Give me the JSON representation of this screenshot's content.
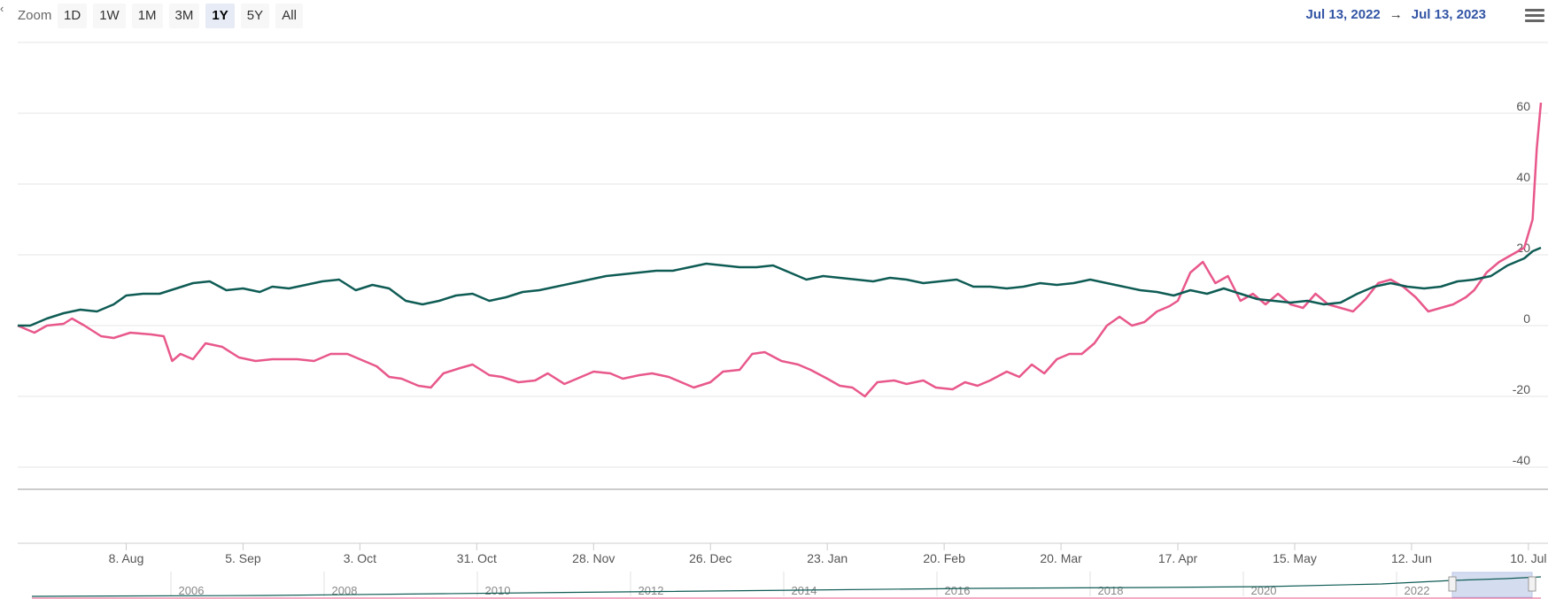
{
  "toolbar": {
    "collapse_glyph": "‹",
    "zoom_label": "Zoom",
    "zoom_buttons": [
      "1D",
      "1W",
      "1M",
      "3M",
      "1Y",
      "5Y",
      "All"
    ],
    "active_zoom": "1Y",
    "range_start": "Jul 13, 2022",
    "range_arrow": "→",
    "range_end": "Jul 13, 2023",
    "menu_icon": "hamburger-menu-icon"
  },
  "chart_data": {
    "type": "line",
    "ylim": [
      -45,
      62
    ],
    "yticks": [
      60,
      40,
      20,
      0,
      -20,
      -40
    ],
    "grid": true,
    "date_range": [
      "2022-07-13",
      "2023-07-13"
    ],
    "xticks": [
      {
        "label": "8. Aug",
        "date": "2022-08-08"
      },
      {
        "label": "5. Sep",
        "date": "2022-09-05"
      },
      {
        "label": "3. Oct",
        "date": "2022-10-03"
      },
      {
        "label": "31. Oct",
        "date": "2022-10-31"
      },
      {
        "label": "28. Nov",
        "date": "2022-11-28"
      },
      {
        "label": "26. Dec",
        "date": "2022-12-26"
      },
      {
        "label": "23. Jan",
        "date": "2023-01-23"
      },
      {
        "label": "20. Feb",
        "date": "2023-02-20"
      },
      {
        "label": "20. Mar",
        "date": "2023-03-20"
      },
      {
        "label": "17. Apr",
        "date": "2023-04-17"
      },
      {
        "label": "15. May",
        "date": "2023-05-15"
      },
      {
        "label": "12. Jun",
        "date": "2023-06-12"
      },
      {
        "label": "10. Jul",
        "date": "2023-07-10"
      }
    ],
    "series": [
      {
        "color": "#e8588b",
        "points": [
          [
            "2022-07-13",
            0
          ],
          [
            "2022-07-17",
            -2
          ],
          [
            "2022-07-20",
            0
          ],
          [
            "2022-07-24",
            0.5
          ],
          [
            "2022-07-26",
            2
          ],
          [
            "2022-07-29",
            0
          ],
          [
            "2022-08-02",
            -3
          ],
          [
            "2022-08-05",
            -3.5
          ],
          [
            "2022-08-09",
            -2
          ],
          [
            "2022-08-14",
            -2.5
          ],
          [
            "2022-08-17",
            -3
          ],
          [
            "2022-08-19",
            -10
          ],
          [
            "2022-08-21",
            -8
          ],
          [
            "2022-08-24",
            -9.5
          ],
          [
            "2022-08-27",
            -5
          ],
          [
            "2022-08-31",
            -6
          ],
          [
            "2022-09-04",
            -9
          ],
          [
            "2022-09-08",
            -10
          ],
          [
            "2022-09-12",
            -9.5
          ],
          [
            "2022-09-18",
            -9.5
          ],
          [
            "2022-09-22",
            -10
          ],
          [
            "2022-09-26",
            -8
          ],
          [
            "2022-09-30",
            -8
          ],
          [
            "2022-10-04",
            -10
          ],
          [
            "2022-10-07",
            -11.5
          ],
          [
            "2022-10-10",
            -14.5
          ],
          [
            "2022-10-13",
            -15
          ],
          [
            "2022-10-17",
            -17
          ],
          [
            "2022-10-20",
            -17.5
          ],
          [
            "2022-10-23",
            -13.5
          ],
          [
            "2022-10-27",
            -12
          ],
          [
            "2022-10-30",
            -11
          ],
          [
            "2022-11-03",
            -14
          ],
          [
            "2022-11-06",
            -14.5
          ],
          [
            "2022-11-10",
            -16
          ],
          [
            "2022-11-14",
            -15.5
          ],
          [
            "2022-11-17",
            -13.5
          ],
          [
            "2022-11-21",
            -16.5
          ],
          [
            "2022-11-24",
            -15
          ],
          [
            "2022-11-28",
            -13
          ],
          [
            "2022-12-02",
            -13.5
          ],
          [
            "2022-12-05",
            -15
          ],
          [
            "2022-12-09",
            -14
          ],
          [
            "2022-12-12",
            -13.5
          ],
          [
            "2022-12-16",
            -14.5
          ],
          [
            "2022-12-19",
            -16
          ],
          [
            "2022-12-22",
            -17.5
          ],
          [
            "2022-12-26",
            -16
          ],
          [
            "2022-12-29",
            -13
          ],
          [
            "2023-01-02",
            -12.5
          ],
          [
            "2023-01-05",
            -8
          ],
          [
            "2023-01-08",
            -7.5
          ],
          [
            "2023-01-12",
            -10
          ],
          [
            "2023-01-16",
            -11
          ],
          [
            "2023-01-19",
            -12.5
          ],
          [
            "2023-01-23",
            -15
          ],
          [
            "2023-01-26",
            -17
          ],
          [
            "2023-01-29",
            -17.5
          ],
          [
            "2023-02-01",
            -20
          ],
          [
            "2023-02-04",
            -16
          ],
          [
            "2023-02-08",
            -15.5
          ],
          [
            "2023-02-11",
            -16.5
          ],
          [
            "2023-02-15",
            -15.5
          ],
          [
            "2023-02-18",
            -17.5
          ],
          [
            "2023-02-22",
            -18
          ],
          [
            "2023-02-25",
            -16
          ],
          [
            "2023-02-28",
            -17
          ],
          [
            "2023-03-03",
            -15.5
          ],
          [
            "2023-03-07",
            -13
          ],
          [
            "2023-03-10",
            -14.5
          ],
          [
            "2023-03-13",
            -11
          ],
          [
            "2023-03-16",
            -13.5
          ],
          [
            "2023-03-19",
            -9.5
          ],
          [
            "2023-03-22",
            -8
          ],
          [
            "2023-03-25",
            -8
          ],
          [
            "2023-03-28",
            -5
          ],
          [
            "2023-03-31",
            0
          ],
          [
            "2023-04-03",
            2.5
          ],
          [
            "2023-04-06",
            0
          ],
          [
            "2023-04-09",
            1
          ],
          [
            "2023-04-12",
            4
          ],
          [
            "2023-04-15",
            5.5
          ],
          [
            "2023-04-17",
            7
          ],
          [
            "2023-04-20",
            15
          ],
          [
            "2023-04-23",
            18
          ],
          [
            "2023-04-26",
            12
          ],
          [
            "2023-04-29",
            14
          ],
          [
            "2023-05-02",
            7
          ],
          [
            "2023-05-05",
            9
          ],
          [
            "2023-05-08",
            6
          ],
          [
            "2023-05-11",
            9
          ],
          [
            "2023-05-14",
            6
          ],
          [
            "2023-05-17",
            5
          ],
          [
            "2023-05-20",
            9
          ],
          [
            "2023-05-23",
            6
          ],
          [
            "2023-05-26",
            5
          ],
          [
            "2023-05-29",
            4
          ],
          [
            "2023-06-01",
            7.5
          ],
          [
            "2023-06-04",
            12
          ],
          [
            "2023-06-07",
            13
          ],
          [
            "2023-06-10",
            11
          ],
          [
            "2023-06-13",
            8
          ],
          [
            "2023-06-16",
            4
          ],
          [
            "2023-06-19",
            5
          ],
          [
            "2023-06-22",
            6
          ],
          [
            "2023-06-25",
            8
          ],
          [
            "2023-06-27",
            10
          ],
          [
            "2023-06-30",
            15
          ],
          [
            "2023-07-03",
            18
          ],
          [
            "2023-07-06",
            20
          ],
          [
            "2023-07-09",
            22
          ],
          [
            "2023-07-11",
            30
          ],
          [
            "2023-07-12",
            50
          ],
          [
            "2023-07-13",
            63
          ]
        ]
      },
      {
        "color": "#0f5c55",
        "points": [
          [
            "2022-07-13",
            0
          ],
          [
            "2022-07-16",
            0
          ],
          [
            "2022-07-20",
            2
          ],
          [
            "2022-07-24",
            3.5
          ],
          [
            "2022-07-28",
            4.5
          ],
          [
            "2022-08-01",
            4
          ],
          [
            "2022-08-05",
            6
          ],
          [
            "2022-08-08",
            8.5
          ],
          [
            "2022-08-12",
            9
          ],
          [
            "2022-08-16",
            9
          ],
          [
            "2022-08-20",
            10.5
          ],
          [
            "2022-08-24",
            12
          ],
          [
            "2022-08-28",
            12.5
          ],
          [
            "2022-09-01",
            10
          ],
          [
            "2022-09-05",
            10.5
          ],
          [
            "2022-09-09",
            9.5
          ],
          [
            "2022-09-12",
            11
          ],
          [
            "2022-09-16",
            10.5
          ],
          [
            "2022-09-20",
            11.5
          ],
          [
            "2022-09-24",
            12.5
          ],
          [
            "2022-09-28",
            13
          ],
          [
            "2022-10-02",
            10
          ],
          [
            "2022-10-06",
            11.5
          ],
          [
            "2022-10-10",
            10.5
          ],
          [
            "2022-10-14",
            7
          ],
          [
            "2022-10-18",
            6
          ],
          [
            "2022-10-22",
            7
          ],
          [
            "2022-10-26",
            8.5
          ],
          [
            "2022-10-30",
            9
          ],
          [
            "2022-11-03",
            7
          ],
          [
            "2022-11-07",
            8
          ],
          [
            "2022-11-11",
            9.5
          ],
          [
            "2022-11-15",
            10
          ],
          [
            "2022-11-19",
            11
          ],
          [
            "2022-11-23",
            12
          ],
          [
            "2022-11-27",
            13
          ],
          [
            "2022-12-01",
            14
          ],
          [
            "2022-12-05",
            14.5
          ],
          [
            "2022-12-09",
            15
          ],
          [
            "2022-12-13",
            15.5
          ],
          [
            "2022-12-17",
            15.5
          ],
          [
            "2022-12-21",
            16.5
          ],
          [
            "2022-12-25",
            17.5
          ],
          [
            "2022-12-29",
            17
          ],
          [
            "2023-01-02",
            16.5
          ],
          [
            "2023-01-06",
            16.5
          ],
          [
            "2023-01-10",
            17
          ],
          [
            "2023-01-14",
            15
          ],
          [
            "2023-01-18",
            13
          ],
          [
            "2023-01-22",
            14
          ],
          [
            "2023-01-26",
            13.5
          ],
          [
            "2023-01-30",
            13
          ],
          [
            "2023-02-03",
            12.5
          ],
          [
            "2023-02-07",
            13.5
          ],
          [
            "2023-02-11",
            13
          ],
          [
            "2023-02-15",
            12
          ],
          [
            "2023-02-19",
            12.5
          ],
          [
            "2023-02-23",
            13
          ],
          [
            "2023-02-27",
            11
          ],
          [
            "2023-03-03",
            11
          ],
          [
            "2023-03-07",
            10.5
          ],
          [
            "2023-03-11",
            11
          ],
          [
            "2023-03-15",
            12
          ],
          [
            "2023-03-19",
            11.5
          ],
          [
            "2023-03-23",
            12
          ],
          [
            "2023-03-27",
            13
          ],
          [
            "2023-03-31",
            12
          ],
          [
            "2023-04-04",
            11
          ],
          [
            "2023-04-08",
            10
          ],
          [
            "2023-04-12",
            9.5
          ],
          [
            "2023-04-16",
            8.5
          ],
          [
            "2023-04-20",
            10
          ],
          [
            "2023-04-24",
            9
          ],
          [
            "2023-04-28",
            10.5
          ],
          [
            "2023-05-02",
            9
          ],
          [
            "2023-05-06",
            7.5
          ],
          [
            "2023-05-10",
            7
          ],
          [
            "2023-05-14",
            6.5
          ],
          [
            "2023-05-18",
            7
          ],
          [
            "2023-05-22",
            6
          ],
          [
            "2023-05-26",
            6.5
          ],
          [
            "2023-05-30",
            9
          ],
          [
            "2023-06-03",
            11
          ],
          [
            "2023-06-07",
            12
          ],
          [
            "2023-06-11",
            11
          ],
          [
            "2023-06-15",
            10.5
          ],
          [
            "2023-06-19",
            11
          ],
          [
            "2023-06-23",
            12.5
          ],
          [
            "2023-06-27",
            13
          ],
          [
            "2023-07-01",
            14
          ],
          [
            "2023-07-03",
            15.5
          ],
          [
            "2023-07-05",
            17
          ],
          [
            "2023-07-07",
            18
          ],
          [
            "2023-07-09",
            19
          ],
          [
            "2023-07-11",
            21
          ],
          [
            "2023-07-12",
            21.5
          ],
          [
            "2023-07-13",
            22
          ]
        ]
      }
    ]
  },
  "navigator": {
    "years": [
      "2006",
      "2008",
      "2010",
      "2012",
      "2014",
      "2016",
      "2018",
      "2020",
      "2022"
    ]
  }
}
